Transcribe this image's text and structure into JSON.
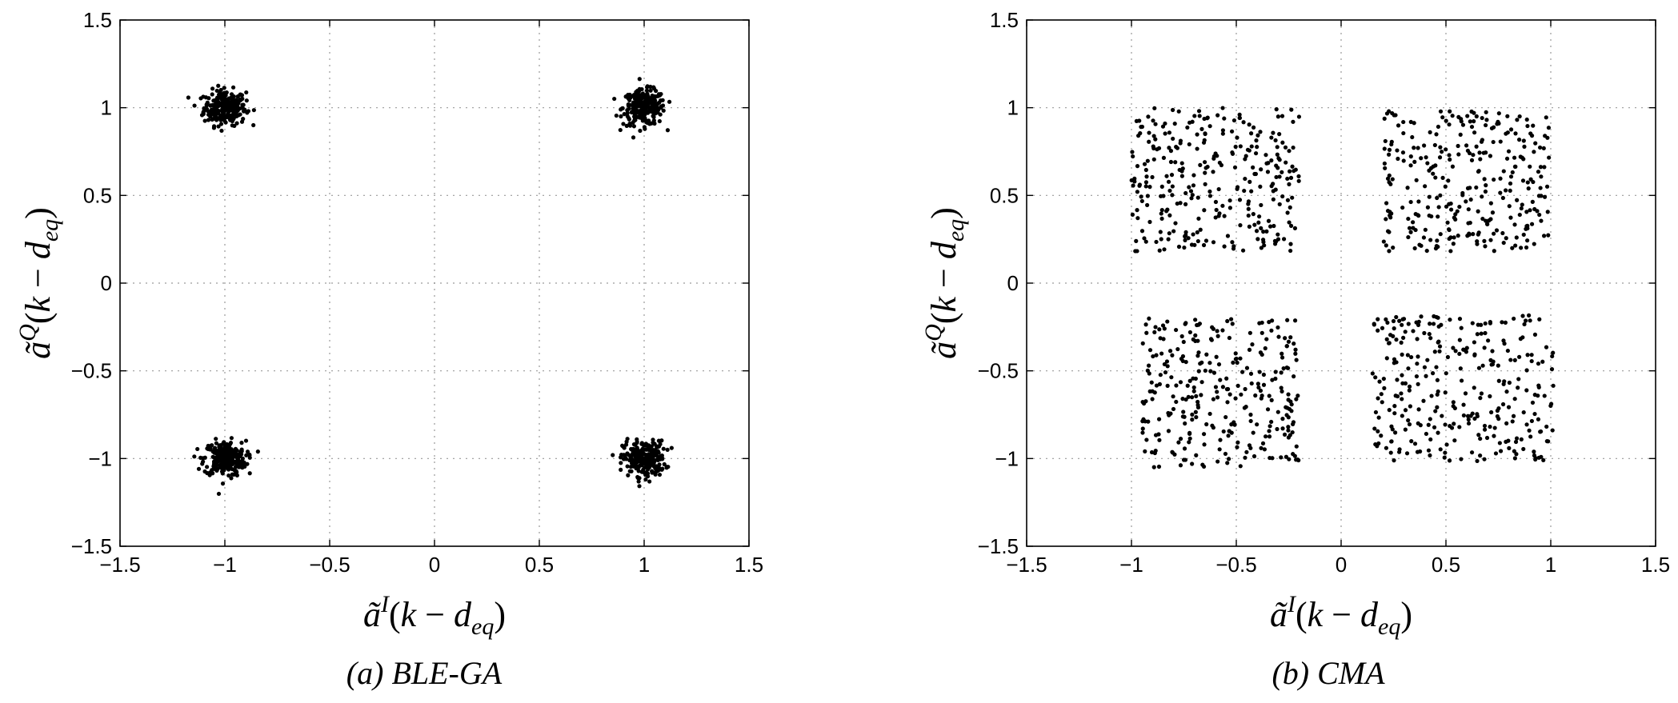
{
  "chart_data": [
    {
      "type": "scatter",
      "subplot_caption": "(a) BLE-GA",
      "title": "",
      "xlabel": "ã^I(k − d_eq)",
      "ylabel": "ã^Q(k − d_eq)",
      "xlim": [
        -1.5,
        1.5
      ],
      "ylim": [
        -1.5,
        1.5
      ],
      "xticks": [
        "−1.5",
        "−1",
        "−0.5",
        "0",
        "0.5",
        "1",
        "1.5"
      ],
      "yticks": [
        "1.5",
        "1",
        "0.5",
        "0",
        "−0.5",
        "−1",
        "−1.5"
      ],
      "grid": true,
      "marker_color": "#000000",
      "clusters": [
        {
          "center": [
            -1,
            1
          ],
          "spread": 0.05,
          "count": 260
        },
        {
          "center": [
            1,
            1
          ],
          "spread": 0.05,
          "count": 260
        },
        {
          "center": [
            -1,
            -1
          ],
          "spread": 0.05,
          "count": 260
        },
        {
          "center": [
            1,
            -1
          ],
          "spread": 0.05,
          "count": 260
        }
      ]
    },
    {
      "type": "scatter",
      "subplot_caption": "(b) CMA",
      "title": "",
      "xlabel": "ã^I(k − d_eq)",
      "ylabel": "ã^Q(k − d_eq)",
      "xlim": [
        -1.5,
        1.5
      ],
      "ylim": [
        -1.5,
        1.5
      ],
      "xticks": [
        "−1.5",
        "−1",
        "−0.5",
        "0",
        "0.5",
        "1",
        "1.5"
      ],
      "yticks": [
        "1.5",
        "1",
        "0.5",
        "0",
        "−0.5",
        "−1",
        "−1.5"
      ],
      "grid": true,
      "marker_color": "#000000",
      "clusters": [
        {
          "xrange": [
            -1.0,
            -0.2
          ],
          "yrange": [
            0.18,
            1.0
          ],
          "count": 300
        },
        {
          "xrange": [
            0.2,
            1.0
          ],
          "yrange": [
            0.18,
            0.98
          ],
          "count": 300
        },
        {
          "xrange": [
            -0.95,
            -0.2
          ],
          "yrange": [
            -1.05,
            -0.2
          ],
          "count": 300
        },
        {
          "xrange": [
            0.15,
            1.02
          ],
          "yrange": [
            -1.02,
            -0.18
          ],
          "count": 300
        }
      ]
    }
  ]
}
